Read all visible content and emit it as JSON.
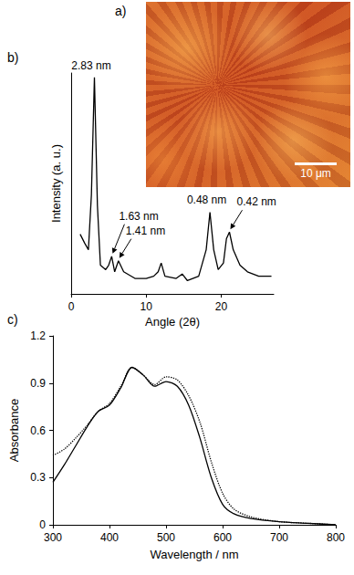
{
  "image_panel": {
    "label": "a)",
    "scale_bar": "10 μm"
  },
  "chart_data": [
    {
      "type": "line",
      "title": "b)",
      "x_label": "Angle (2θ)",
      "y_label": "Intensity (a. u.)",
      "x": [
        1.2,
        1.8,
        2.3,
        2.7,
        3.1,
        3.5,
        3.9,
        4.6,
        5.0,
        5.4,
        5.8,
        6.3,
        7.0,
        8.5,
        10,
        11,
        11.6,
        12,
        12.5,
        14,
        14.8,
        15.5,
        17,
        18.0,
        18.5,
        19.0,
        19.6,
        20.3,
        20.7,
        21.1,
        21.6,
        22.5,
        23.5,
        25,
        26.7
      ],
      "series": [
        {
          "color": "#000000",
          "line_style": "solid",
          "values": [
            27,
            23,
            20,
            45,
            98,
            40,
            13,
            11,
            13,
            17,
            10,
            15,
            10,
            7,
            7,
            8,
            10,
            14,
            8,
            7,
            9,
            6,
            8,
            20,
            37,
            20,
            11,
            14,
            25,
            28,
            20,
            13,
            10,
            8,
            8
          ]
        }
      ],
      "xlim": [
        0,
        27
      ],
      "xticks": [
        0,
        10,
        20
      ],
      "ylim": [
        0,
        100
      ],
      "tick_labels": "x",
      "grid": false,
      "annotations": [
        {
          "text": "2.83 nm",
          "x": 3.1,
          "y": 98
        },
        {
          "text": "1.41 nm",
          "x": 6.3,
          "y": 15,
          "arrow": true
        },
        {
          "text": "1.63 nm",
          "x": 5.4,
          "y": 17,
          "arrow": true
        },
        {
          "text": "0.48 nm",
          "x": 18.5,
          "y": 37
        },
        {
          "text": "0.42 nm",
          "x": 21.1,
          "y": 28,
          "arrow": true
        }
      ]
    },
    {
      "type": "line",
      "title": "c)",
      "x_label": "Wavelength / nm",
      "y_label": "Absorbance",
      "x": [
        300,
        320,
        340,
        360,
        380,
        400,
        420,
        440,
        460,
        480,
        500,
        520,
        540,
        560,
        580,
        600,
        620,
        650,
        700,
        750,
        800
      ],
      "series": [
        {
          "color": "#000000",
          "line_style": "solid",
          "values": [
            0.27,
            0.38,
            0.5,
            0.62,
            0.72,
            0.76,
            0.87,
            1.0,
            0.95,
            0.88,
            0.91,
            0.88,
            0.76,
            0.55,
            0.3,
            0.13,
            0.07,
            0.04,
            0.02,
            0.01,
            0
          ]
        },
        {
          "color": "#000000",
          "line_style": "dotted",
          "values": [
            0.44,
            0.48,
            0.55,
            0.63,
            0.72,
            0.77,
            0.88,
            1.0,
            0.95,
            0.89,
            0.94,
            0.92,
            0.82,
            0.65,
            0.4,
            0.2,
            0.1,
            0.05,
            0.02,
            0.01,
            0
          ]
        }
      ],
      "xlim": [
        300,
        800
      ],
      "xticks": [
        300,
        400,
        500,
        600,
        700,
        800
      ],
      "ylim": [
        0,
        1.2
      ],
      "yticks": [
        0,
        0.3,
        0.6,
        0.9,
        1.2
      ],
      "grid": false
    }
  ]
}
